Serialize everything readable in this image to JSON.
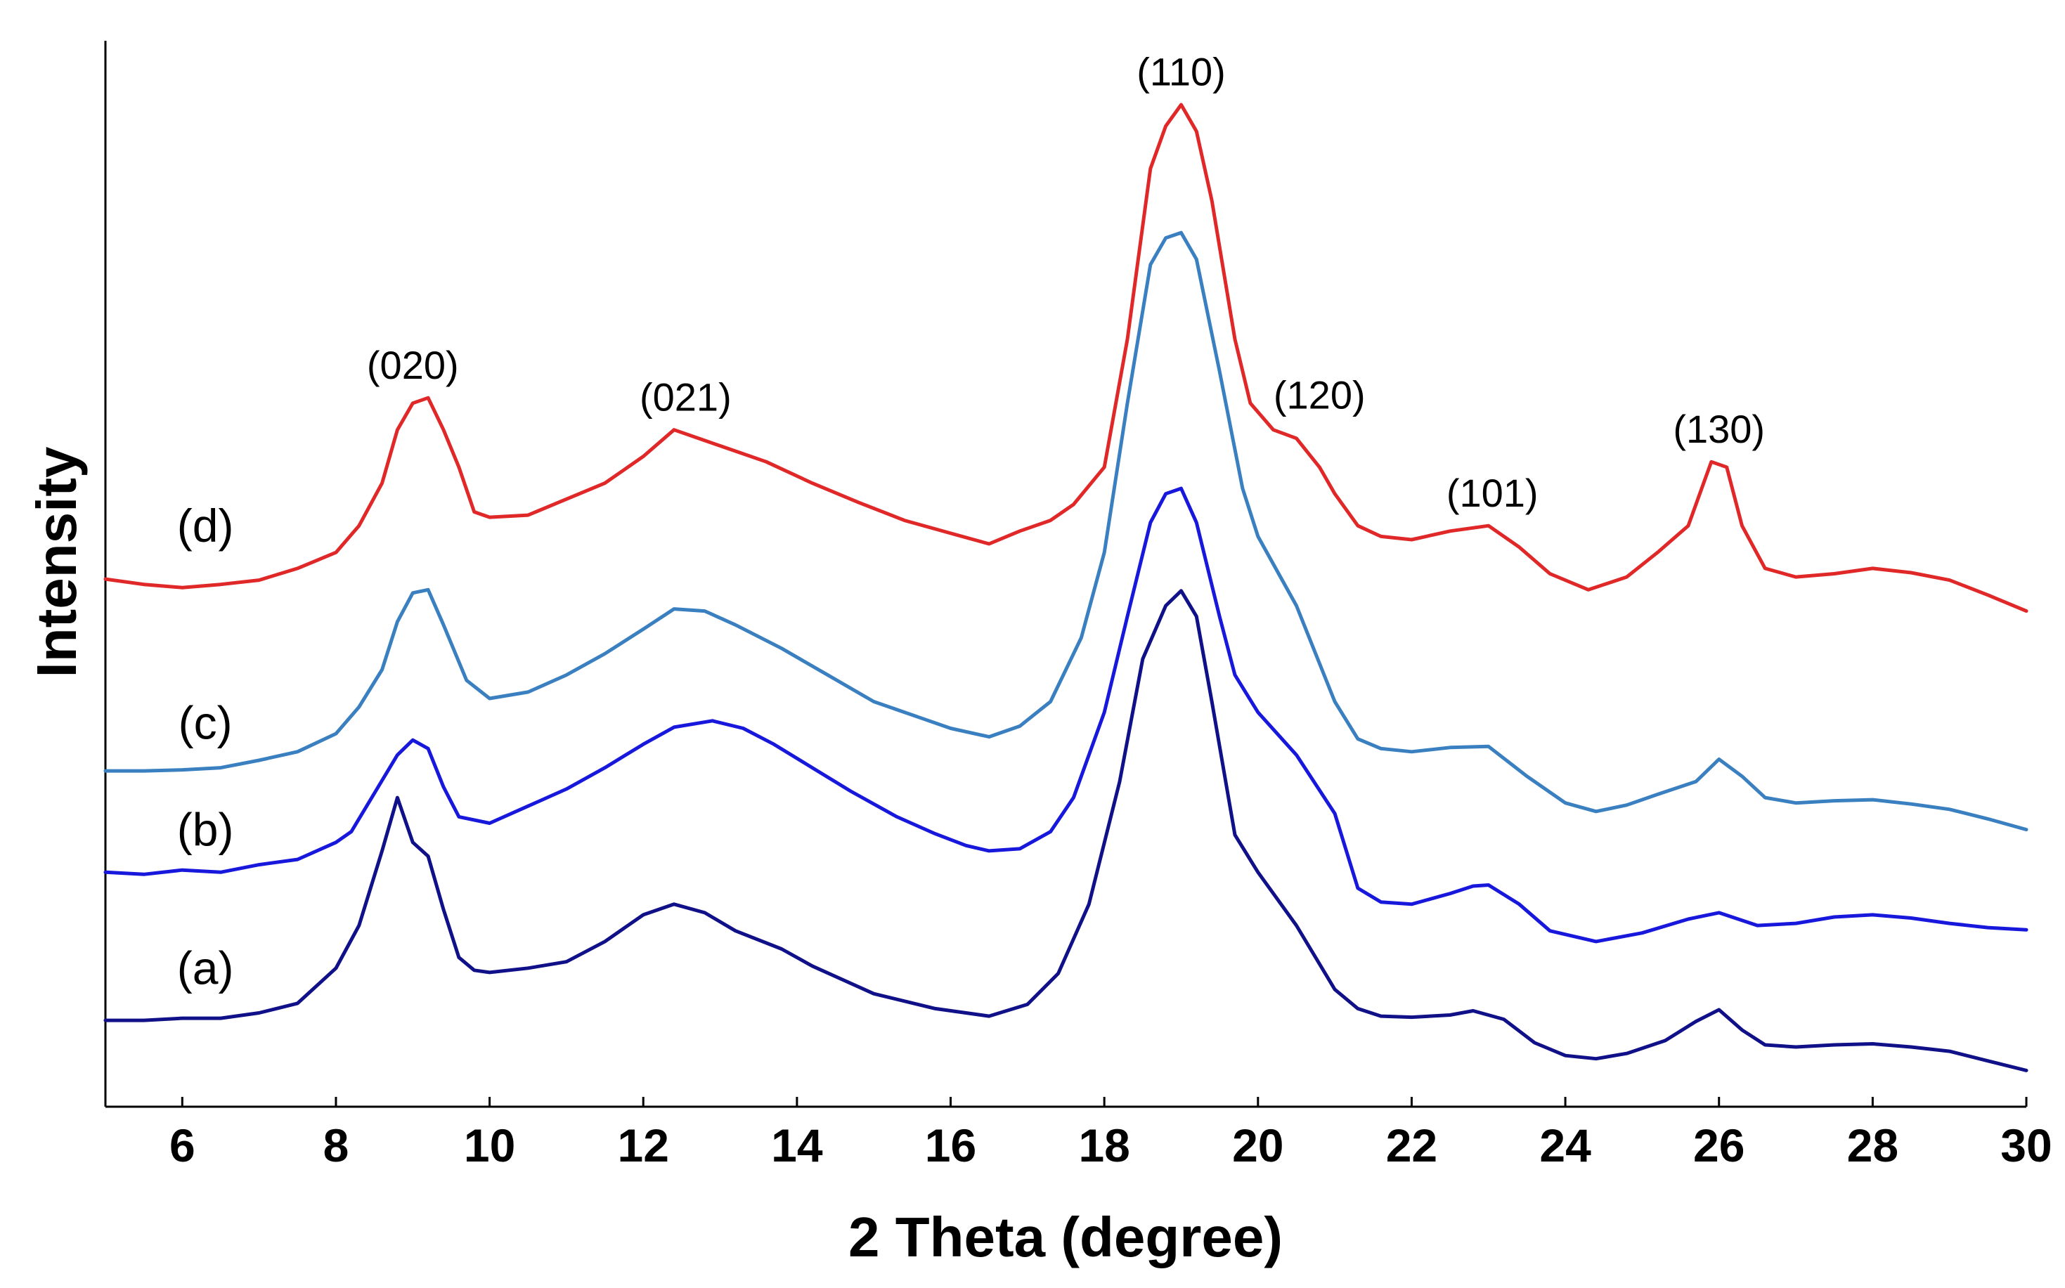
{
  "chart_data": {
    "type": "line",
    "title": "",
    "xlabel": "2 Theta (degree)",
    "ylabel": "Intensity",
    "xlim": [
      5,
      30
    ],
    "ylim": [
      0,
      1
    ],
    "xticks": [
      6,
      8,
      10,
      12,
      14,
      16,
      18,
      20,
      22,
      24,
      26,
      28,
      30
    ],
    "x_tick_labels": [
      "6",
      "8",
      "10",
      "12",
      "14",
      "16",
      "18",
      "20",
      "22",
      "24",
      "26",
      "28",
      "30"
    ],
    "grid": false,
    "legend": "none",
    "series": [
      {
        "name": "(a)",
        "color": "#101088",
        "label_at": [
          6.3,
          0.115
        ],
        "points": [
          [
            5,
            0.081
          ],
          [
            5.5,
            0.081
          ],
          [
            6,
            0.083
          ],
          [
            6.5,
            0.083
          ],
          [
            7,
            0.088
          ],
          [
            7.5,
            0.097
          ],
          [
            8,
            0.13
          ],
          [
            8.3,
            0.17
          ],
          [
            8.6,
            0.24
          ],
          [
            8.8,
            0.29
          ],
          [
            9,
            0.248
          ],
          [
            9.2,
            0.235
          ],
          [
            9.4,
            0.185
          ],
          [
            9.6,
            0.14
          ],
          [
            9.8,
            0.128
          ],
          [
            10,
            0.126
          ],
          [
            10.5,
            0.13
          ],
          [
            11,
            0.136
          ],
          [
            11.5,
            0.155
          ],
          [
            12,
            0.18
          ],
          [
            12.4,
            0.19
          ],
          [
            12.8,
            0.182
          ],
          [
            13.2,
            0.165
          ],
          [
            13.8,
            0.148
          ],
          [
            14.2,
            0.132
          ],
          [
            15,
            0.106
          ],
          [
            15.8,
            0.092
          ],
          [
            16.5,
            0.085
          ],
          [
            17,
            0.096
          ],
          [
            17.4,
            0.125
          ],
          [
            17.8,
            0.19
          ],
          [
            18.2,
            0.305
          ],
          [
            18.5,
            0.42
          ],
          [
            18.8,
            0.47
          ],
          [
            19,
            0.484
          ],
          [
            19.2,
            0.46
          ],
          [
            19.4,
            0.38
          ],
          [
            19.7,
            0.255
          ],
          [
            20,
            0.22
          ],
          [
            20.5,
            0.17
          ],
          [
            21,
            0.11
          ],
          [
            21.3,
            0.092
          ],
          [
            21.6,
            0.085
          ],
          [
            22,
            0.084
          ],
          [
            22.5,
            0.086
          ],
          [
            22.8,
            0.09
          ],
          [
            23.2,
            0.082
          ],
          [
            23.6,
            0.06
          ],
          [
            24,
            0.048
          ],
          [
            24.4,
            0.045
          ],
          [
            24.8,
            0.05
          ],
          [
            25.3,
            0.062
          ],
          [
            25.7,
            0.08
          ],
          [
            26,
            0.091
          ],
          [
            26.3,
            0.072
          ],
          [
            26.6,
            0.058
          ],
          [
            27,
            0.056
          ],
          [
            27.5,
            0.058
          ],
          [
            28,
            0.059
          ],
          [
            28.5,
            0.056
          ],
          [
            29,
            0.052
          ],
          [
            29.5,
            0.043
          ],
          [
            30,
            0.034
          ]
        ]
      },
      {
        "name": "(b)",
        "color": "#1818dd",
        "label_at": [
          6.3,
          0.245
        ],
        "points": [
          [
            5,
            0.22
          ],
          [
            5.5,
            0.218
          ],
          [
            6,
            0.222
          ],
          [
            6.5,
            0.22
          ],
          [
            7,
            0.227
          ],
          [
            7.5,
            0.232
          ],
          [
            8,
            0.248
          ],
          [
            8.2,
            0.258
          ],
          [
            8.5,
            0.294
          ],
          [
            8.8,
            0.33
          ],
          [
            9,
            0.344
          ],
          [
            9.2,
            0.336
          ],
          [
            9.4,
            0.3
          ],
          [
            9.6,
            0.272
          ],
          [
            10,
            0.266
          ],
          [
            10.5,
            0.282
          ],
          [
            11,
            0.298
          ],
          [
            11.5,
            0.318
          ],
          [
            12,
            0.34
          ],
          [
            12.4,
            0.356
          ],
          [
            12.9,
            0.362
          ],
          [
            13.3,
            0.355
          ],
          [
            13.7,
            0.34
          ],
          [
            14.2,
            0.318
          ],
          [
            14.7,
            0.296
          ],
          [
            15.3,
            0.272
          ],
          [
            15.8,
            0.256
          ],
          [
            16.2,
            0.245
          ],
          [
            16.5,
            0.24
          ],
          [
            16.9,
            0.242
          ],
          [
            17.3,
            0.258
          ],
          [
            17.6,
            0.29
          ],
          [
            18,
            0.37
          ],
          [
            18.3,
            0.46
          ],
          [
            18.6,
            0.548
          ],
          [
            18.8,
            0.575
          ],
          [
            19,
            0.58
          ],
          [
            19.2,
            0.548
          ],
          [
            19.5,
            0.46
          ],
          [
            19.7,
            0.405
          ],
          [
            20,
            0.37
          ],
          [
            20.5,
            0.33
          ],
          [
            21,
            0.275
          ],
          [
            21.3,
            0.205
          ],
          [
            21.6,
            0.192
          ],
          [
            22,
            0.19
          ],
          [
            22.5,
            0.2
          ],
          [
            22.8,
            0.207
          ],
          [
            23,
            0.208
          ],
          [
            23.4,
            0.19
          ],
          [
            23.8,
            0.165
          ],
          [
            24.4,
            0.155
          ],
          [
            25,
            0.163
          ],
          [
            25.6,
            0.176
          ],
          [
            26,
            0.182
          ],
          [
            26.5,
            0.17
          ],
          [
            27,
            0.172
          ],
          [
            27.5,
            0.178
          ],
          [
            28,
            0.18
          ],
          [
            28.5,
            0.177
          ],
          [
            29,
            0.172
          ],
          [
            29.5,
            0.168
          ],
          [
            30,
            0.166
          ]
        ]
      },
      {
        "name": "(c)",
        "color": "#3a80c0",
        "label_at": [
          6.3,
          0.345
        ],
        "points": [
          [
            5,
            0.315
          ],
          [
            5.5,
            0.315
          ],
          [
            6,
            0.316
          ],
          [
            6.5,
            0.318
          ],
          [
            7,
            0.325
          ],
          [
            7.5,
            0.333
          ],
          [
            8,
            0.35
          ],
          [
            8.3,
            0.375
          ],
          [
            8.6,
            0.41
          ],
          [
            8.8,
            0.455
          ],
          [
            9,
            0.482
          ],
          [
            9.2,
            0.485
          ],
          [
            9.4,
            0.452
          ],
          [
            9.7,
            0.4
          ],
          [
            10,
            0.383
          ],
          [
            10.5,
            0.389
          ],
          [
            11,
            0.405
          ],
          [
            11.5,
            0.425
          ],
          [
            12,
            0.448
          ],
          [
            12.4,
            0.467
          ],
          [
            12.8,
            0.465
          ],
          [
            13.2,
            0.452
          ],
          [
            13.8,
            0.43
          ],
          [
            14.4,
            0.405
          ],
          [
            15,
            0.38
          ],
          [
            15.6,
            0.365
          ],
          [
            16,
            0.355
          ],
          [
            16.5,
            0.347
          ],
          [
            16.9,
            0.357
          ],
          [
            17.3,
            0.38
          ],
          [
            17.7,
            0.44
          ],
          [
            18,
            0.52
          ],
          [
            18.3,
            0.66
          ],
          [
            18.6,
            0.79
          ],
          [
            18.8,
            0.815
          ],
          [
            19,
            0.82
          ],
          [
            19.2,
            0.795
          ],
          [
            19.5,
            0.69
          ],
          [
            19.8,
            0.58
          ],
          [
            20,
            0.535
          ],
          [
            20.5,
            0.47
          ],
          [
            21,
            0.38
          ],
          [
            21.3,
            0.345
          ],
          [
            21.6,
            0.336
          ],
          [
            22,
            0.333
          ],
          [
            22.5,
            0.337
          ],
          [
            23,
            0.338
          ],
          [
            23.5,
            0.31
          ],
          [
            24,
            0.285
          ],
          [
            24.4,
            0.277
          ],
          [
            24.8,
            0.283
          ],
          [
            25.2,
            0.293
          ],
          [
            25.7,
            0.305
          ],
          [
            26,
            0.326
          ],
          [
            26.3,
            0.31
          ],
          [
            26.6,
            0.29
          ],
          [
            27,
            0.285
          ],
          [
            27.5,
            0.287
          ],
          [
            28,
            0.288
          ],
          [
            28.5,
            0.284
          ],
          [
            29,
            0.279
          ],
          [
            29.5,
            0.27
          ],
          [
            30,
            0.26
          ]
        ]
      },
      {
        "name": "(d)",
        "color": "#e02828",
        "label_at": [
          6.3,
          0.53
        ],
        "points": [
          [
            5,
            0.495
          ],
          [
            5.5,
            0.49
          ],
          [
            6,
            0.487
          ],
          [
            6.5,
            0.49
          ],
          [
            7,
            0.494
          ],
          [
            7.5,
            0.505
          ],
          [
            8,
            0.52
          ],
          [
            8.3,
            0.545
          ],
          [
            8.6,
            0.585
          ],
          [
            8.8,
            0.635
          ],
          [
            9,
            0.66
          ],
          [
            9.2,
            0.665
          ],
          [
            9.4,
            0.635
          ],
          [
            9.6,
            0.6
          ],
          [
            9.8,
            0.558
          ],
          [
            10,
            0.553
          ],
          [
            10.5,
            0.555
          ],
          [
            11,
            0.57
          ],
          [
            11.5,
            0.585
          ],
          [
            12,
            0.61
          ],
          [
            12.4,
            0.635
          ],
          [
            12.8,
            0.625
          ],
          [
            13.2,
            0.615
          ],
          [
            13.6,
            0.605
          ],
          [
            14.2,
            0.585
          ],
          [
            14.8,
            0.567
          ],
          [
            15.4,
            0.55
          ],
          [
            16,
            0.538
          ],
          [
            16.5,
            0.528
          ],
          [
            16.9,
            0.54
          ],
          [
            17.3,
            0.55
          ],
          [
            17.6,
            0.565
          ],
          [
            18,
            0.6
          ],
          [
            18.3,
            0.72
          ],
          [
            18.6,
            0.88
          ],
          [
            18.8,
            0.92
          ],
          [
            19,
            0.94
          ],
          [
            19.2,
            0.915
          ],
          [
            19.4,
            0.85
          ],
          [
            19.7,
            0.72
          ],
          [
            19.9,
            0.66
          ],
          [
            20.2,
            0.635
          ],
          [
            20.5,
            0.627
          ],
          [
            20.8,
            0.6
          ],
          [
            21,
            0.575
          ],
          [
            21.3,
            0.545
          ],
          [
            21.6,
            0.535
          ],
          [
            22,
            0.532
          ],
          [
            22.5,
            0.54
          ],
          [
            23,
            0.545
          ],
          [
            23.4,
            0.525
          ],
          [
            23.8,
            0.5
          ],
          [
            24.3,
            0.485
          ],
          [
            24.8,
            0.497
          ],
          [
            25.2,
            0.52
          ],
          [
            25.6,
            0.545
          ],
          [
            25.9,
            0.605
          ],
          [
            26.1,
            0.6
          ],
          [
            26.3,
            0.545
          ],
          [
            26.6,
            0.505
          ],
          [
            27,
            0.497
          ],
          [
            27.5,
            0.5
          ],
          [
            28,
            0.505
          ],
          [
            28.5,
            0.501
          ],
          [
            29,
            0.494
          ],
          [
            29.5,
            0.48
          ],
          [
            30,
            0.465
          ]
        ]
      }
    ],
    "annotations": [
      {
        "text": "(020)",
        "x": 9.0,
        "y": 0.683
      },
      {
        "text": "(021)",
        "x": 12.55,
        "y": 0.653
      },
      {
        "text": "(110)",
        "x": 19.0,
        "y": 0.958
      },
      {
        "text": "(120)",
        "x": 20.8,
        "y": 0.655
      },
      {
        "text": "(101)",
        "x": 23.05,
        "y": 0.563
      },
      {
        "text": "(130)",
        "x": 26.0,
        "y": 0.623
      }
    ]
  }
}
